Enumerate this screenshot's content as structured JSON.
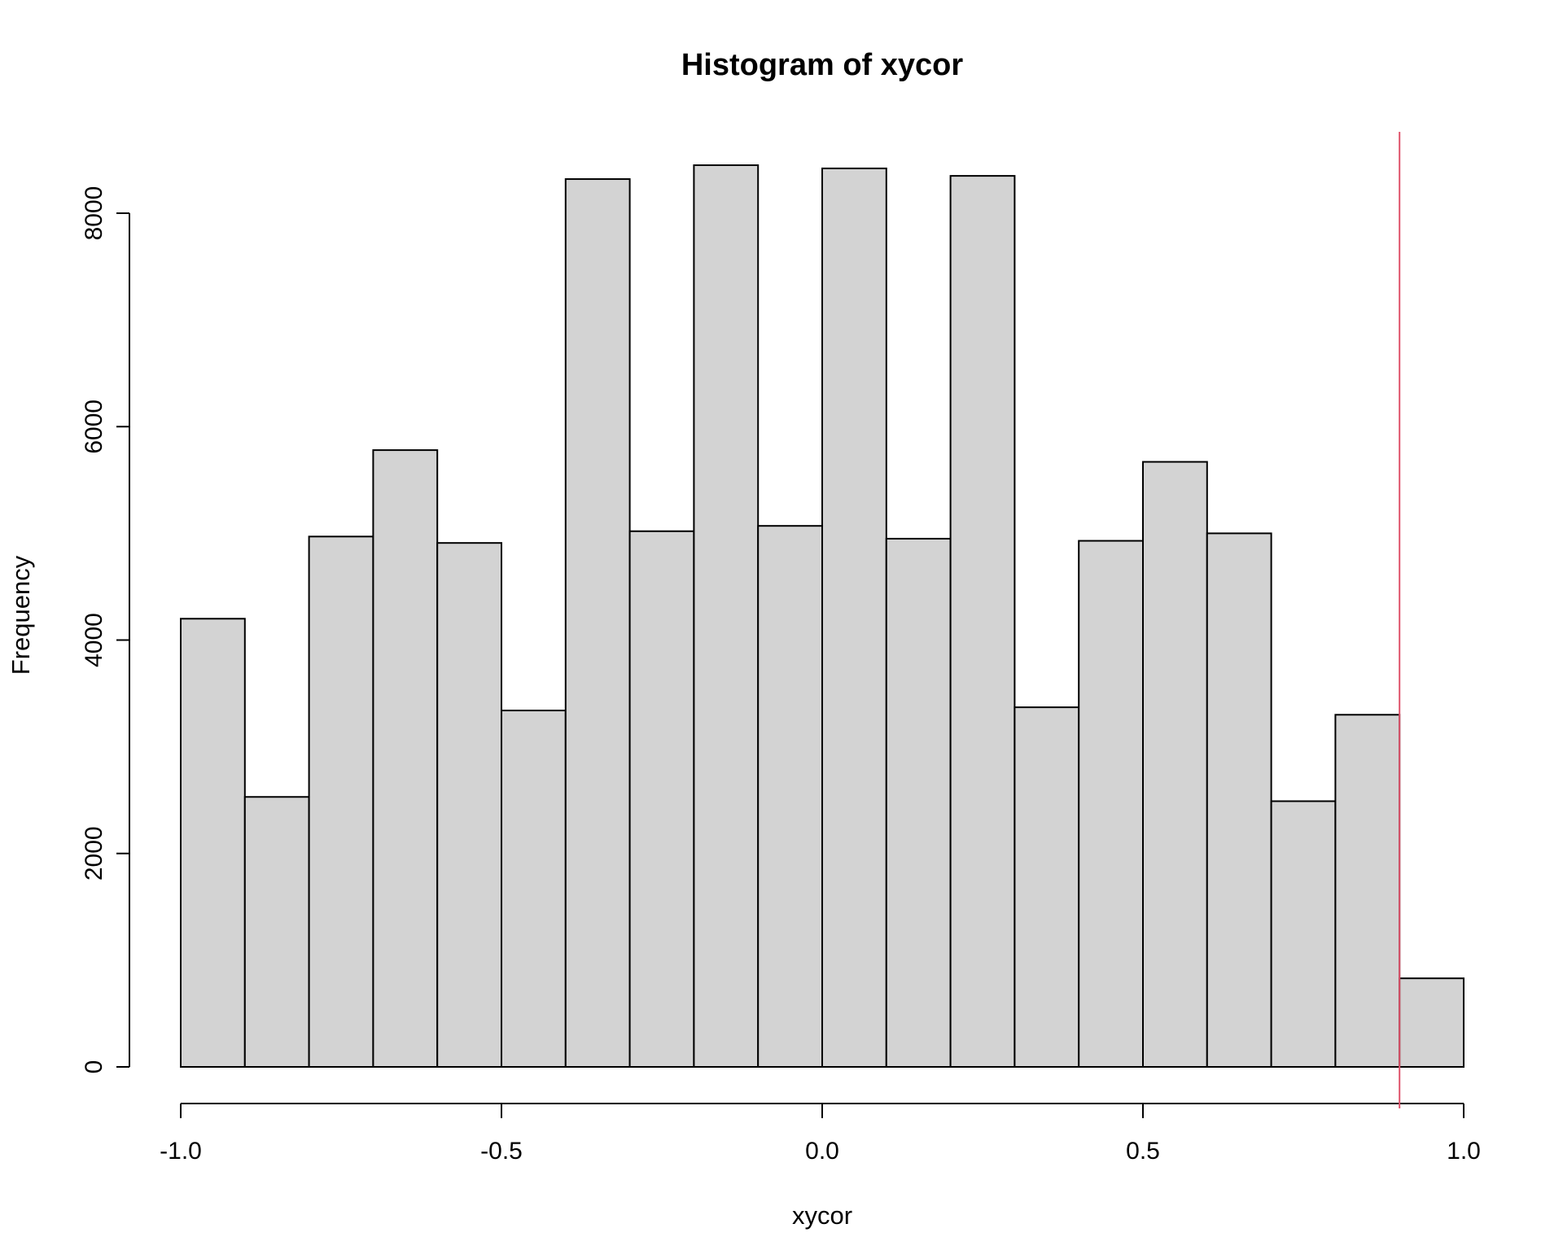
{
  "chart_data": {
    "type": "bar",
    "title": "Histogram of xycor",
    "xlabel": "xycor",
    "ylabel": "Frequency",
    "bin_edges": [
      -1.0,
      -0.9,
      -0.8,
      -0.7,
      -0.6,
      -0.5,
      -0.4,
      -0.3,
      -0.2,
      -0.1,
      0.0,
      0.1,
      0.2,
      0.3,
      0.4,
      0.5,
      0.6,
      0.7,
      0.8,
      0.9,
      1.0
    ],
    "values": [
      4200,
      2530,
      4970,
      5780,
      4910,
      3340,
      8320,
      5020,
      8450,
      5070,
      8420,
      4950,
      8350,
      3370,
      4930,
      5670,
      5000,
      2490,
      3300,
      830
    ],
    "xlim": [
      -1.0,
      1.0
    ],
    "ylim": [
      0,
      8450
    ],
    "x_ticks": [
      -1.0,
      -0.5,
      0.0,
      0.5,
      1.0
    ],
    "x_tick_labels": [
      "-1.0",
      "-0.5",
      "0.0",
      "0.5",
      "1.0"
    ],
    "y_ticks": [
      0,
      2000,
      4000,
      6000,
      8000
    ],
    "y_tick_labels": [
      "0",
      "2000",
      "4000",
      "6000",
      "8000"
    ],
    "reference_line": {
      "x": 0.9,
      "color": "#DF536B"
    },
    "bar_fill": "#D3D3D3",
    "bar_stroke": "#000000",
    "grid": false
  }
}
